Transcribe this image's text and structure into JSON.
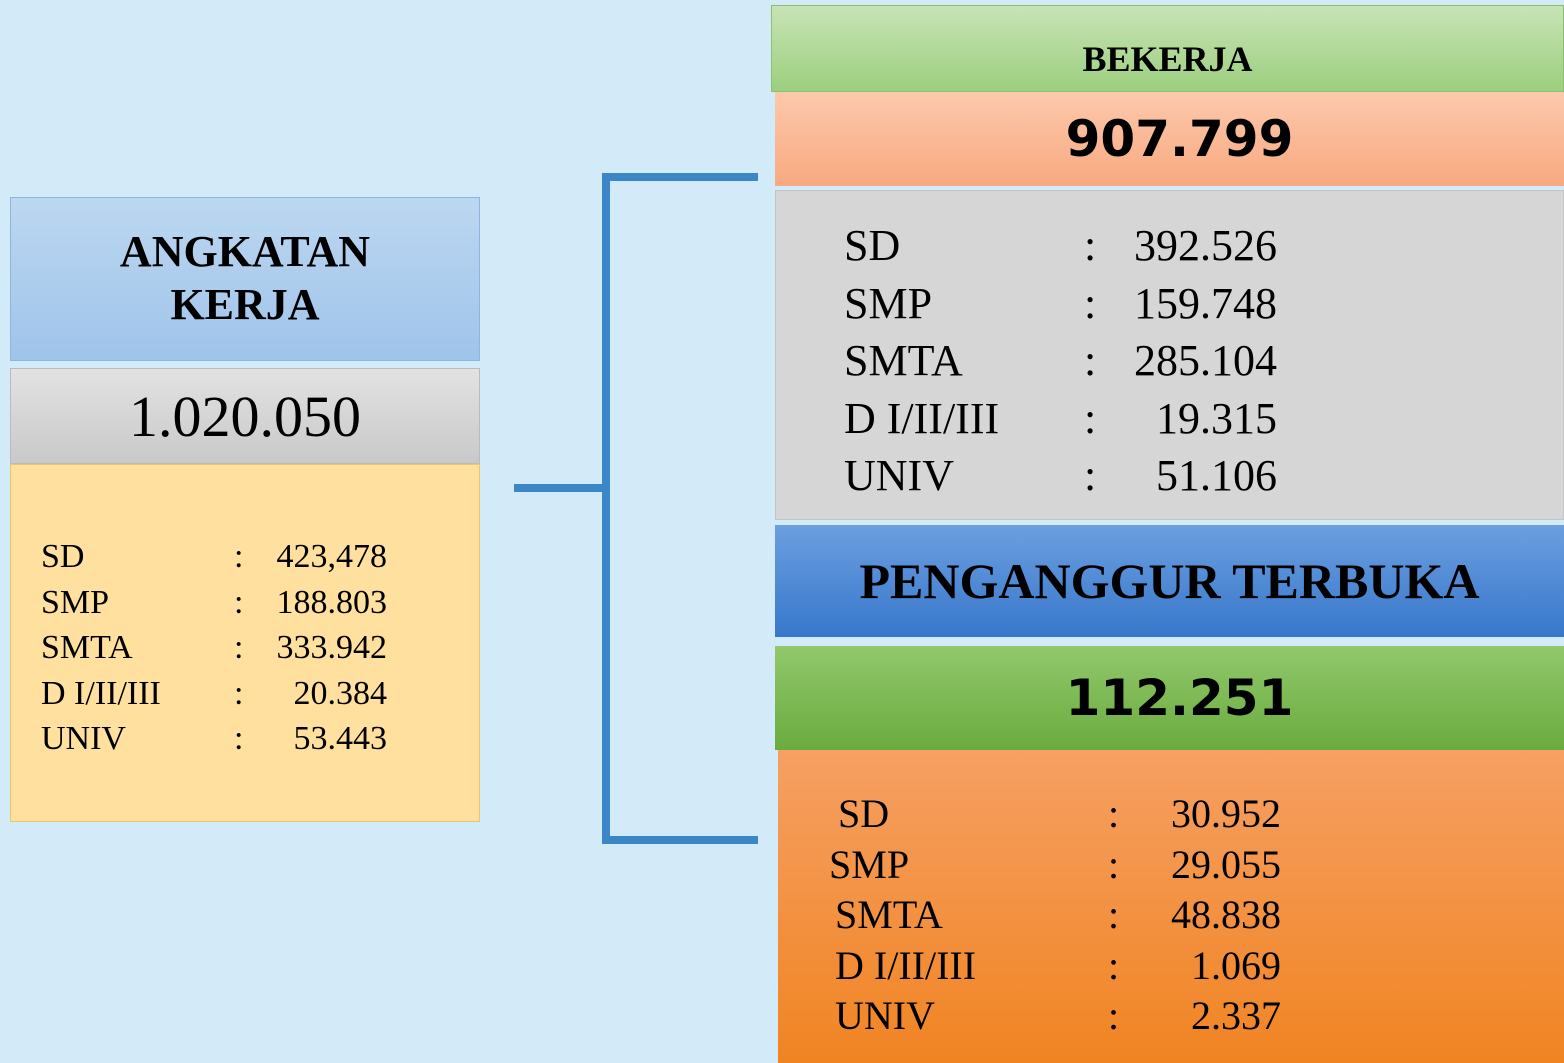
{
  "labor_force": {
    "title": "ANGKATAN KERJA",
    "total": "1.020.050",
    "separator": ":",
    "rows": [
      {
        "label": "SD",
        "value": "423,478"
      },
      {
        "label": "SMP",
        "value": "188.803"
      },
      {
        "label": "SMTA",
        "value": "333.942"
      },
      {
        "label": "D I/II/III",
        "value": "20.384"
      },
      {
        "label": "UNIV",
        "value": "53.443"
      }
    ]
  },
  "employed": {
    "title": "BEKERJA",
    "total": "907.799",
    "separator": ":",
    "rows": [
      {
        "label": "SD",
        "value": "392.526"
      },
      {
        "label": "SMP",
        "value": "159.748"
      },
      {
        "label": "SMTA",
        "value": "285.104"
      },
      {
        "label": "D I/II/III",
        "value": "19.315"
      },
      {
        "label": "UNIV",
        "value": "51.106"
      }
    ]
  },
  "unemployed": {
    "title": "PENGANGGUR TERBUKA",
    "total": "112.251",
    "separator": ":",
    "rows": [
      {
        "label": "SD",
        "value": "30.952"
      },
      {
        "label": "SMP",
        "value": "29.055"
      },
      {
        "label": "SMTA",
        "value": "48.838"
      },
      {
        "label": "D I/II/III",
        "value": "1.069"
      },
      {
        "label": "UNIV",
        "value": "2.337"
      }
    ]
  }
}
